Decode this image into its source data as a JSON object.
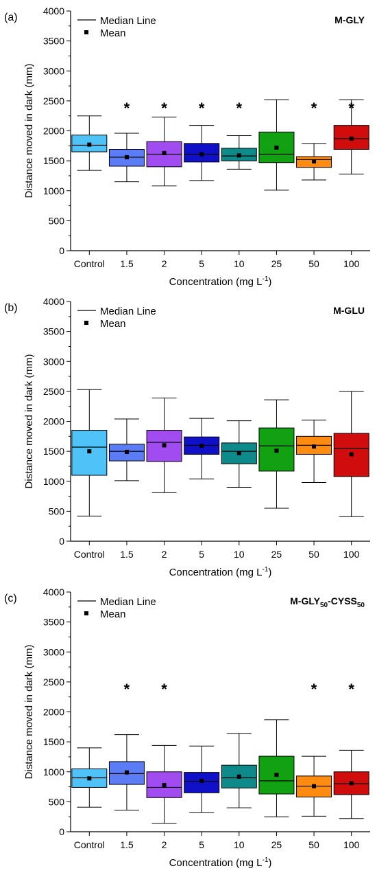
{
  "figure": {
    "legend": {
      "median_label": "Median Line",
      "mean_label": "Mean"
    },
    "y_ticks": [
      "0",
      "500",
      "1000",
      "1500",
      "2000",
      "2500",
      "3000",
      "3500",
      "4000"
    ]
  },
  "chart_data": [
    {
      "type": "box",
      "panel_label": "(a)",
      "title": "M-GLY",
      "title_sub": [],
      "xlabel": "Concentration (mg L",
      "xlabel_sup": "-1",
      "xlabel_end": ")",
      "ylabel": "Distance moved in dark (mm)",
      "ylim": [
        0,
        4000
      ],
      "categories": [
        "Control",
        "1.5",
        "2",
        "5",
        "10",
        "25",
        "50",
        "100"
      ],
      "boxes": [
        {
          "category": "Control",
          "whisker_low": 1340,
          "q1": 1650,
          "median": 1760,
          "q3": 1930,
          "whisker_high": 2250,
          "mean": 1770,
          "significant": false,
          "color": "#4FC3F7"
        },
        {
          "category": "1.5",
          "whisker_low": 1150,
          "q1": 1410,
          "median": 1560,
          "q3": 1690,
          "whisker_high": 1960,
          "mean": 1560,
          "significant": true,
          "color": "#5C7CF6"
        },
        {
          "category": "2",
          "whisker_low": 1080,
          "q1": 1400,
          "median": 1610,
          "q3": 1820,
          "whisker_high": 2230,
          "mean": 1630,
          "significant": true,
          "color": "#A14CF0"
        },
        {
          "category": "5",
          "whisker_low": 1170,
          "q1": 1480,
          "median": 1610,
          "q3": 1790,
          "whisker_high": 2090,
          "mean": 1610,
          "significant": true,
          "color": "#1010C8"
        },
        {
          "category": "10",
          "whisker_low": 1360,
          "q1": 1500,
          "median": 1580,
          "q3": 1710,
          "whisker_high": 1920,
          "mean": 1590,
          "significant": true,
          "color": "#0F8A8A"
        },
        {
          "category": "25",
          "whisker_low": 1010,
          "q1": 1470,
          "median": 1610,
          "q3": 1980,
          "whisker_high": 2520,
          "mean": 1720,
          "significant": false,
          "color": "#12A112"
        },
        {
          "category": "50",
          "whisker_low": 1180,
          "q1": 1390,
          "median": 1520,
          "q3": 1570,
          "whisker_high": 1790,
          "mean": 1490,
          "significant": true,
          "color": "#FF8C10"
        },
        {
          "category": "100",
          "whisker_low": 1280,
          "q1": 1690,
          "median": 1870,
          "q3": 2090,
          "whisker_high": 2520,
          "mean": 1870,
          "significant": true,
          "color": "#D10C0C"
        }
      ]
    },
    {
      "type": "box",
      "panel_label": "(b)",
      "title": "M-GLU",
      "title_sub": [],
      "xlabel": "Concentration (mg L",
      "xlabel_sup": "-1",
      "xlabel_end": ")",
      "ylabel": "Distance moved in dark (mm)",
      "ylim": [
        0,
        4000
      ],
      "categories": [
        "Control",
        "1.5",
        "2",
        "5",
        "10",
        "25",
        "50",
        "100"
      ],
      "boxes": [
        {
          "category": "Control",
          "whisker_low": 420,
          "q1": 1100,
          "median": 1570,
          "q3": 1850,
          "whisker_high": 2530,
          "mean": 1500,
          "significant": false,
          "color": "#4FC3F7"
        },
        {
          "category": "1.5",
          "whisker_low": 1010,
          "q1": 1340,
          "median": 1500,
          "q3": 1620,
          "whisker_high": 2040,
          "mean": 1490,
          "significant": false,
          "color": "#5C7CF6"
        },
        {
          "category": "2",
          "whisker_low": 810,
          "q1": 1330,
          "median": 1650,
          "q3": 1850,
          "whisker_high": 2390,
          "mean": 1600,
          "significant": false,
          "color": "#A14CF0"
        },
        {
          "category": "5",
          "whisker_low": 1040,
          "q1": 1450,
          "median": 1600,
          "q3": 1740,
          "whisker_high": 2050,
          "mean": 1590,
          "significant": false,
          "color": "#1010C8"
        },
        {
          "category": "10",
          "whisker_low": 900,
          "q1": 1290,
          "median": 1500,
          "q3": 1640,
          "whisker_high": 2010,
          "mean": 1470,
          "significant": false,
          "color": "#0F8A8A"
        },
        {
          "category": "25",
          "whisker_low": 550,
          "q1": 1170,
          "median": 1590,
          "q3": 1890,
          "whisker_high": 2360,
          "mean": 1510,
          "significant": false,
          "color": "#12A112"
        },
        {
          "category": "50",
          "whisker_low": 980,
          "q1": 1450,
          "median": 1600,
          "q3": 1750,
          "whisker_high": 2020,
          "mean": 1580,
          "significant": false,
          "color": "#FF8C10"
        },
        {
          "category": "100",
          "whisker_low": 410,
          "q1": 1080,
          "median": 1550,
          "q3": 1800,
          "whisker_high": 2500,
          "mean": 1450,
          "significant": false,
          "color": "#D10C0C"
        }
      ]
    },
    {
      "type": "box",
      "panel_label": "(c)",
      "title": "M-GLY",
      "title_sub": [
        "50",
        "-CYSS",
        "50"
      ],
      "xlabel": "Concentration (mg L",
      "xlabel_sup": "-1",
      "xlabel_end": ")",
      "ylabel": "Distance moved in dark (mm)",
      "ylim": [
        0,
        4000
      ],
      "categories": [
        "Control",
        "1.5",
        "2",
        "5",
        "10",
        "25",
        "50",
        "100"
      ],
      "boxes": [
        {
          "category": "Control",
          "whisker_low": 410,
          "q1": 740,
          "median": 900,
          "q3": 1050,
          "whisker_high": 1400,
          "mean": 890,
          "significant": false,
          "color": "#4FC3F7"
        },
        {
          "category": "1.5",
          "whisker_low": 360,
          "q1": 790,
          "median": 970,
          "q3": 1170,
          "whisker_high": 1620,
          "mean": 990,
          "significant": true,
          "color": "#5C7CF6"
        },
        {
          "category": "2",
          "whisker_low": 140,
          "q1": 570,
          "median": 740,
          "q3": 1000,
          "whisker_high": 1440,
          "mean": 780,
          "significant": true,
          "color": "#A14CF0"
        },
        {
          "category": "5",
          "whisker_low": 320,
          "q1": 650,
          "median": 840,
          "q3": 990,
          "whisker_high": 1430,
          "mean": 850,
          "significant": false,
          "color": "#1010C8"
        },
        {
          "category": "10",
          "whisker_low": 400,
          "q1": 730,
          "median": 900,
          "q3": 1110,
          "whisker_high": 1640,
          "mean": 920,
          "significant": false,
          "color": "#0F8A8A"
        },
        {
          "category": "25",
          "whisker_low": 250,
          "q1": 630,
          "median": 850,
          "q3": 1260,
          "whisker_high": 1870,
          "mean": 950,
          "significant": false,
          "color": "#12A112"
        },
        {
          "category": "50",
          "whisker_low": 260,
          "q1": 580,
          "median": 760,
          "q3": 930,
          "whisker_high": 1260,
          "mean": 760,
          "significant": true,
          "color": "#FF8C10"
        },
        {
          "category": "100",
          "whisker_low": 220,
          "q1": 620,
          "median": 800,
          "q3": 1000,
          "whisker_high": 1360,
          "mean": 810,
          "significant": true,
          "color": "#D10C0C"
        }
      ]
    }
  ]
}
